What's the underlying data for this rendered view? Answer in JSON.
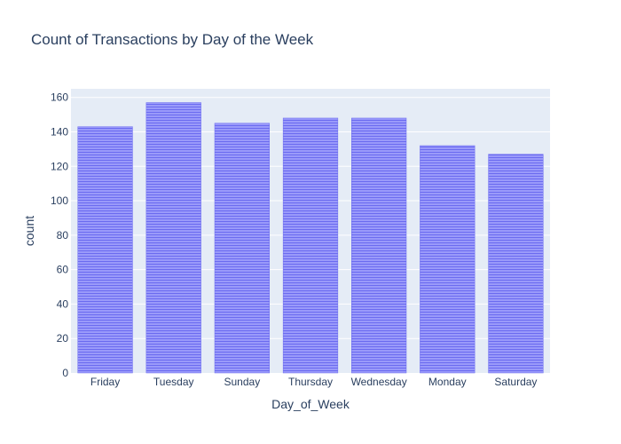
{
  "chart_data": {
    "type": "bar",
    "title": "Count of Transactions by Day of the Week",
    "xlabel": "Day_of_Week",
    "ylabel": "count",
    "categories": [
      "Friday",
      "Tuesday",
      "Sunday",
      "Thursday",
      "Wednesday",
      "Monday",
      "Saturday"
    ],
    "values": [
      143,
      157,
      145,
      148,
      148,
      132,
      127
    ],
    "ylim": [
      0,
      165
    ],
    "yticks": [
      0,
      20,
      40,
      60,
      80,
      100,
      120,
      140,
      160
    ],
    "grid": true,
    "legend": "none",
    "colors": {
      "bar_fill": "#8a8af8",
      "bar_stripe": "#6b6bf0",
      "plot_bg": "#e5ecf6",
      "grid": "#ffffff",
      "text": "#2a3f5f"
    }
  }
}
